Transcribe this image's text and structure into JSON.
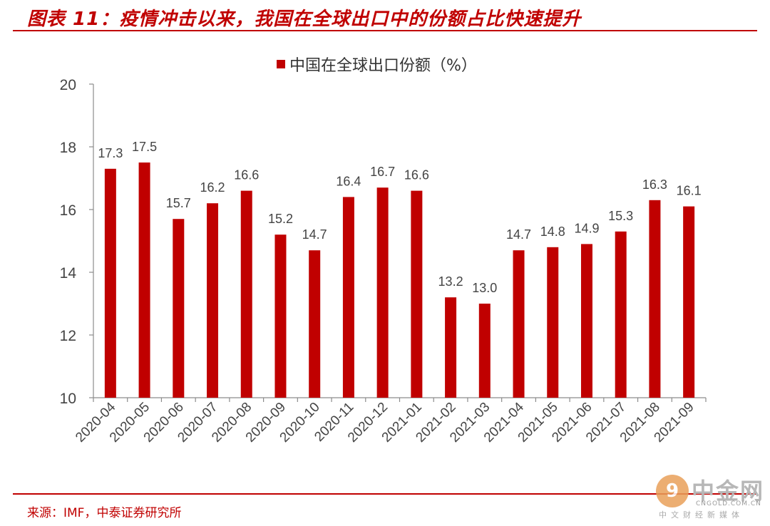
{
  "header": {
    "title": "图表 11：疫情冲击以来，我国在全球出口中的份额占比快速提升"
  },
  "footer": {
    "source": "来源：IMF，中泰证券研究所"
  },
  "watermark": {
    "logo_glyph": "9",
    "name": "中金网",
    "domain": "CNGOLD.COM.CN",
    "tagline": "中文财经新媒体"
  },
  "chart_data": {
    "type": "bar",
    "title": "",
    "xlabel": "",
    "ylabel": "",
    "ylim": [
      10,
      20
    ],
    "yticks": [
      10,
      12,
      14,
      16,
      18,
      20
    ],
    "grid": false,
    "legend_position": "top-center",
    "bar_color": "#c00000",
    "categories": [
      "2020-04",
      "2020-05",
      "2020-06",
      "2020-07",
      "2020-08",
      "2020-09",
      "2020-10",
      "2020-11",
      "2020-12",
      "2021-01",
      "2021-02",
      "2021-03",
      "2021-04",
      "2021-05",
      "2021-06",
      "2021-07",
      "2021-08",
      "2021-09"
    ],
    "series": [
      {
        "name": "中国在全球出口份额（%）",
        "values": [
          17.3,
          17.5,
          15.7,
          16.2,
          16.6,
          15.2,
          14.7,
          16.4,
          16.7,
          16.6,
          13.2,
          13.0,
          14.7,
          14.8,
          14.9,
          15.3,
          16.3,
          16.1
        ]
      }
    ]
  }
}
